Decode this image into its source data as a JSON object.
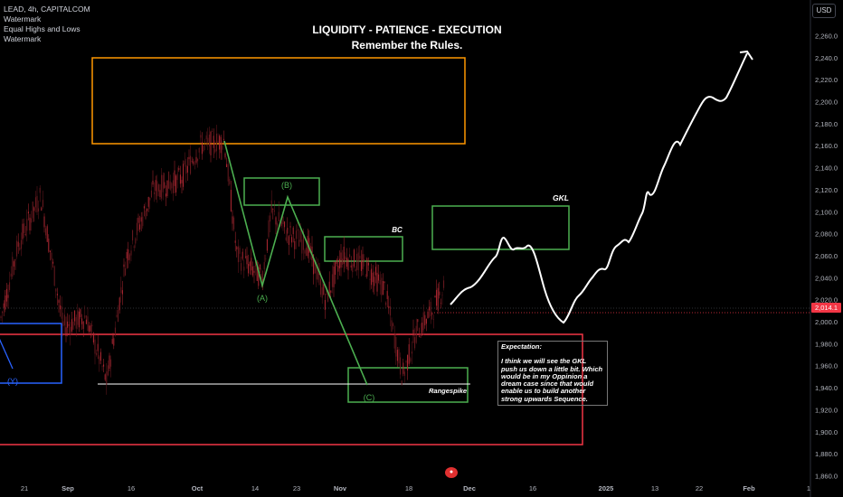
{
  "legend": {
    "symbol": "LEAD, 4h, CAPITALCOM",
    "line2": "Watermark",
    "line3": "Equal Highs and Lows",
    "line4": "Watermark"
  },
  "currency_button": "USD",
  "headline": {
    "line1": "LIQUIDITY - PATIENCE - EXECUTION",
    "line2": "Remember the Rules."
  },
  "current_price": "2,014.1",
  "expectation_note": {
    "heading": "Expectation:",
    "body": "I think we will see the GKL push us down a little bit. Which would be in my Oppinion a dream case since that would enable us to build another strong upwards Sequence."
  },
  "zone_labels": {
    "b": "(B)",
    "a": "(A)",
    "c": "(C)",
    "y": "(Y)",
    "bc": "BC",
    "gkl": "GKL",
    "rangespike": "Rangespike"
  },
  "colors": {
    "background": "#000000",
    "candle_up": "#26a69a",
    "candle_down": "#b22833",
    "orange_zone": "#ff9800",
    "green_zone": "#4caf50",
    "red_zone": "#f23645",
    "blue_zone": "#2962ff",
    "projection": "#ffffff"
  },
  "chart_data": {
    "type": "line",
    "title": "LIQUIDITY - PATIENCE - EXECUTION",
    "subtitle": "Remember the Rules.",
    "y_axis_ticks": [
      2260,
      2240,
      2220,
      2200,
      2180,
      2160,
      2140,
      2120,
      2100,
      2080,
      2060,
      2040,
      2020,
      2000,
      1980,
      1960,
      1940,
      1920,
      1900,
      1880,
      1860
    ],
    "y_tick_labels": [
      "2,260.0",
      "2,240.0",
      "2,220.0",
      "2,200.0",
      "2,180.0",
      "2,160.0",
      "2,140.0",
      "2,120.0",
      "2,100.0",
      "2,080.0",
      "2,060.0",
      "2,040.0",
      "2,020.0",
      "2,000.0",
      "1,980.0",
      "1,960.0",
      "1,940.0",
      "1,920.0",
      "1,900.0",
      "1,880.0",
      "1,860.0"
    ],
    "ylim": [
      1855,
      2273
    ],
    "x_tick_labels": [
      "21",
      "Sep",
      "16",
      "Oct",
      "14",
      "23",
      "Nov",
      "18",
      "Dec",
      "16",
      "2025",
      "13",
      "22",
      "Feb",
      "1"
    ],
    "price_series_approx": {
      "x": [
        "Aug 21",
        "Aug 28",
        "Sep 4",
        "Sep 10",
        "Sep 16",
        "Sep 24",
        "Oct 1",
        "Oct 8",
        "Oct 14",
        "Oct 18",
        "Oct 23",
        "Oct 28",
        "Nov 1",
        "Nov 6",
        "Nov 12",
        "Nov 18",
        "Nov 22",
        "Nov 26"
      ],
      "y": [
        2000,
        2110,
        1990,
        1945,
        2080,
        2120,
        2140,
        2165,
        2080,
        2100,
        2080,
        2050,
        2060,
        2050,
        2030,
        1950,
        1990,
        2015
      ]
    },
    "projection_series_approx": {
      "x": [
        "Nov 28",
        "Dec 4",
        "Dec 8",
        "Dec 12",
        "Dec 18",
        "Dec 24",
        "Dec 30",
        "Jan 8",
        "Jan 15",
        "Jan 22",
        "Feb 1"
      ],
      "y": [
        2025,
        2050,
        2075,
        2065,
        2000,
        2035,
        2060,
        2130,
        2165,
        2200,
        2245
      ]
    },
    "abc_wave": {
      "points": [
        "Oct 8 top",
        "(A)",
        "(B)",
        "(C)"
      ],
      "y": [
        2165,
        2035,
        2115,
        1940
      ]
    },
    "zones": [
      {
        "name": "supply zone (orange)",
        "y_range": [
          2162,
          2238
        ]
      },
      {
        "name": "(B) box",
        "y_range": [
          2106,
          2129
        ]
      },
      {
        "name": "BC box",
        "y_range": [
          2059,
          2081
        ]
      },
      {
        "name": "GKL box",
        "y_range": [
          2065,
          2105
        ]
      },
      {
        "name": "(C) box",
        "y_range": [
          1930,
          1961
        ]
      },
      {
        "name": "range box (red)",
        "y_range": [
          1893,
          1993
        ]
      },
      {
        "name": "(Y) box",
        "y_range": [
          1950,
          2000
        ]
      }
    ],
    "rangespike_level": 1945,
    "current_price": 2014.1,
    "grid": false,
    "legend": "top-left"
  }
}
